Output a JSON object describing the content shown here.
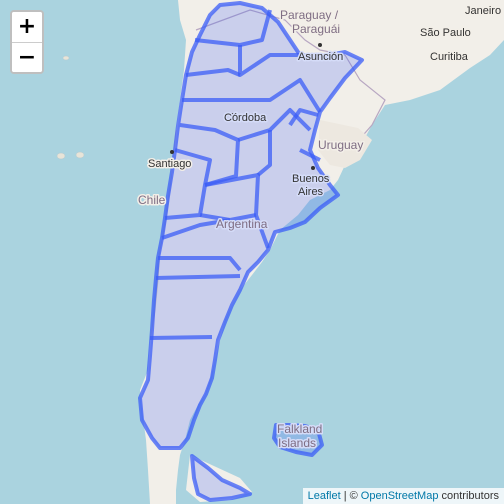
{
  "controls": {
    "zoom_in_label": "+",
    "zoom_out_label": "−"
  },
  "map_labels": {
    "countries": [
      "Paraguay /",
      "Paraguái",
      "Uruguay",
      "Chile",
      "Argentina",
      "Falkland",
      "Islands"
    ],
    "cities": [
      "Asunción",
      "Córdoba",
      "Santiago",
      "Buenos",
      "Aires",
      "Curitiba",
      "São Paulo",
      "Janeiro"
    ]
  },
  "attribution": {
    "leaflet": "Leaflet",
    "separator": "| ©",
    "osm": "OpenStreetMap",
    "contributors": "contributors"
  },
  "style": {
    "water": "#aad3df",
    "land": "#f2efe9",
    "overlay_fill": "#c9cff5",
    "overlay_stroke": "#3b5ef7"
  },
  "icons": [
    "plus-icon",
    "minus-icon",
    "city-dot-icon"
  ]
}
